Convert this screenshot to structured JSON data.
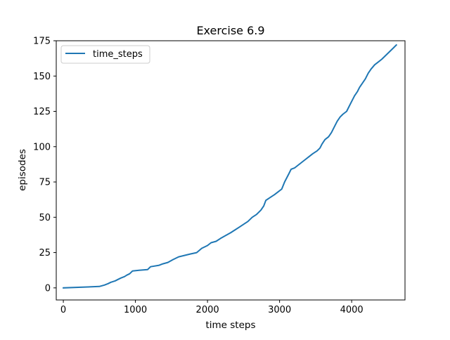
{
  "chart_data": {
    "type": "line",
    "title": "Exercise 6.9",
    "xlabel": "time steps",
    "ylabel": "episodes",
    "xlim": [
      -98.3,
      4740
    ],
    "ylim": [
      -8.55,
      175
    ],
    "xticks": [
      0,
      1000,
      2000,
      3000,
      4000
    ],
    "yticks": [
      0,
      25,
      50,
      75,
      100,
      125,
      150,
      175
    ],
    "xtick_labels": [
      "0",
      "1000",
      "2000",
      "3000",
      "4000"
    ],
    "ytick_labels": [
      "0",
      "25",
      "50",
      "75",
      "100",
      "125",
      "150",
      "175"
    ],
    "grid": false,
    "legend_position": "top-left",
    "series": [
      {
        "name": "time_steps",
        "color": "#1f77b4",
        "points": [
          [
            0,
            0
          ],
          [
            500,
            1
          ],
          [
            570,
            2
          ],
          [
            620,
            3
          ],
          [
            660,
            4
          ],
          [
            720,
            5
          ],
          [
            760,
            6
          ],
          [
            800,
            7
          ],
          [
            850,
            8
          ],
          [
            880,
            9
          ],
          [
            920,
            10
          ],
          [
            960,
            12
          ],
          [
            1050,
            12.5
          ],
          [
            1170,
            13
          ],
          [
            1210,
            15
          ],
          [
            1330,
            16
          ],
          [
            1380,
            17
          ],
          [
            1450,
            18
          ],
          [
            1520,
            20
          ],
          [
            1600,
            22
          ],
          [
            1680,
            23
          ],
          [
            1760,
            24
          ],
          [
            1850,
            25
          ],
          [
            1920,
            28
          ],
          [
            2000,
            30
          ],
          [
            2050,
            32
          ],
          [
            2120,
            33
          ],
          [
            2180,
            35
          ],
          [
            2250,
            37
          ],
          [
            2320,
            39
          ],
          [
            2380,
            41
          ],
          [
            2440,
            43
          ],
          [
            2500,
            45
          ],
          [
            2560,
            47
          ],
          [
            2620,
            50
          ],
          [
            2680,
            52
          ],
          [
            2740,
            55
          ],
          [
            2780,
            58
          ],
          [
            2810,
            62
          ],
          [
            2870,
            64
          ],
          [
            2930,
            66
          ],
          [
            2980,
            68
          ],
          [
            3030,
            70
          ],
          [
            3070,
            75
          ],
          [
            3100,
            78
          ],
          [
            3130,
            81
          ],
          [
            3160,
            84
          ],
          [
            3210,
            85
          ],
          [
            3260,
            87
          ],
          [
            3310,
            89
          ],
          [
            3360,
            91
          ],
          [
            3410,
            93
          ],
          [
            3460,
            95
          ],
          [
            3520,
            97
          ],
          [
            3560,
            99
          ],
          [
            3590,
            102
          ],
          [
            3630,
            105
          ],
          [
            3680,
            107
          ],
          [
            3720,
            110
          ],
          [
            3760,
            114
          ],
          [
            3800,
            118
          ],
          [
            3840,
            121
          ],
          [
            3880,
            123
          ],
          [
            3930,
            125
          ],
          [
            3960,
            128
          ],
          [
            4000,
            132
          ],
          [
            4040,
            136
          ],
          [
            4080,
            139
          ],
          [
            4110,
            142
          ],
          [
            4150,
            145
          ],
          [
            4190,
            148
          ],
          [
            4230,
            152
          ],
          [
            4270,
            155
          ],
          [
            4320,
            158
          ],
          [
            4370,
            160
          ],
          [
            4420,
            162
          ],
          [
            4460,
            164
          ],
          [
            4500,
            166
          ],
          [
            4540,
            168
          ],
          [
            4580,
            170
          ],
          [
            4620,
            172
          ]
        ]
      }
    ]
  }
}
